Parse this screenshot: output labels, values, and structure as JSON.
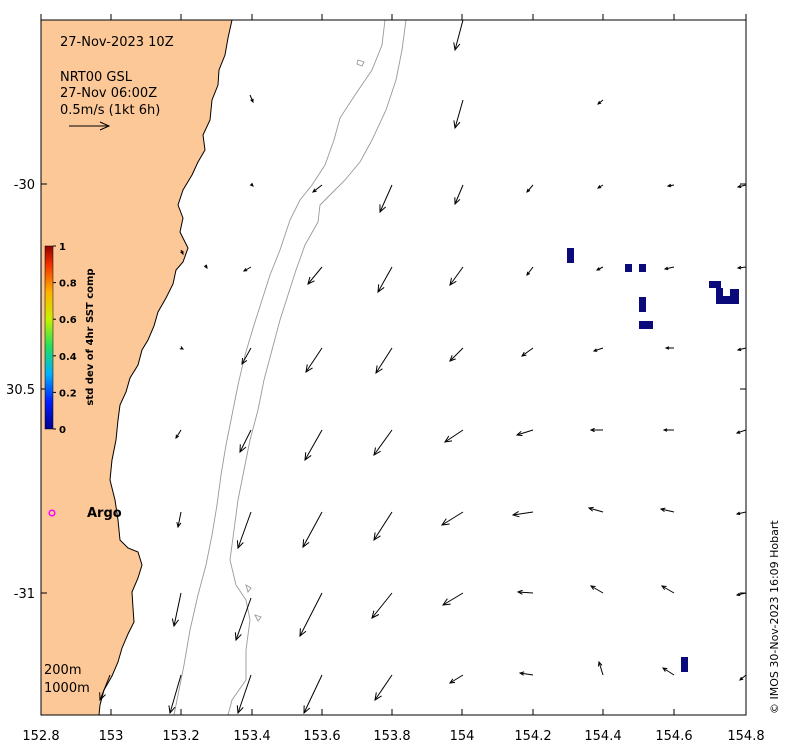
{
  "header": {
    "datetime": "27-Nov-2023 10Z",
    "product": "NRT00 GSL",
    "product_time": "27-Nov 06:00Z",
    "arrow_scale": "0.5m/s (1kt 6h)"
  },
  "colorbar": {
    "label": "std dev of 4hr SST comp",
    "ticks": [
      "1",
      "0.8",
      "0.6",
      "0.4",
      "0.2",
      "0"
    ]
  },
  "argo": {
    "label": "Argo",
    "marker_color": "#ff00ff"
  },
  "depth_legend": {
    "contour1": "200m",
    "contour2": "1000m"
  },
  "credit": "© IMOS 30-Nov-2023 16:09 Hobart",
  "axes": {
    "x_ticks": [
      "152.8",
      "153",
      "153.2",
      "153.4",
      "153.6",
      "153.8",
      "154",
      "154.2",
      "154.4",
      "154.6",
      "154.8"
    ],
    "y_ticks": [
      "-30",
      "30.5",
      "-31"
    ]
  },
  "colors": {
    "land": "#fdc898",
    "sst_cells": "#0a0a7a",
    "contour": "#999999",
    "argo": "#ff00ff"
  },
  "map_extent": {
    "lon": [
      152.8,
      154.8
    ],
    "lat": [
      -31.3,
      -29.6
    ]
  }
}
